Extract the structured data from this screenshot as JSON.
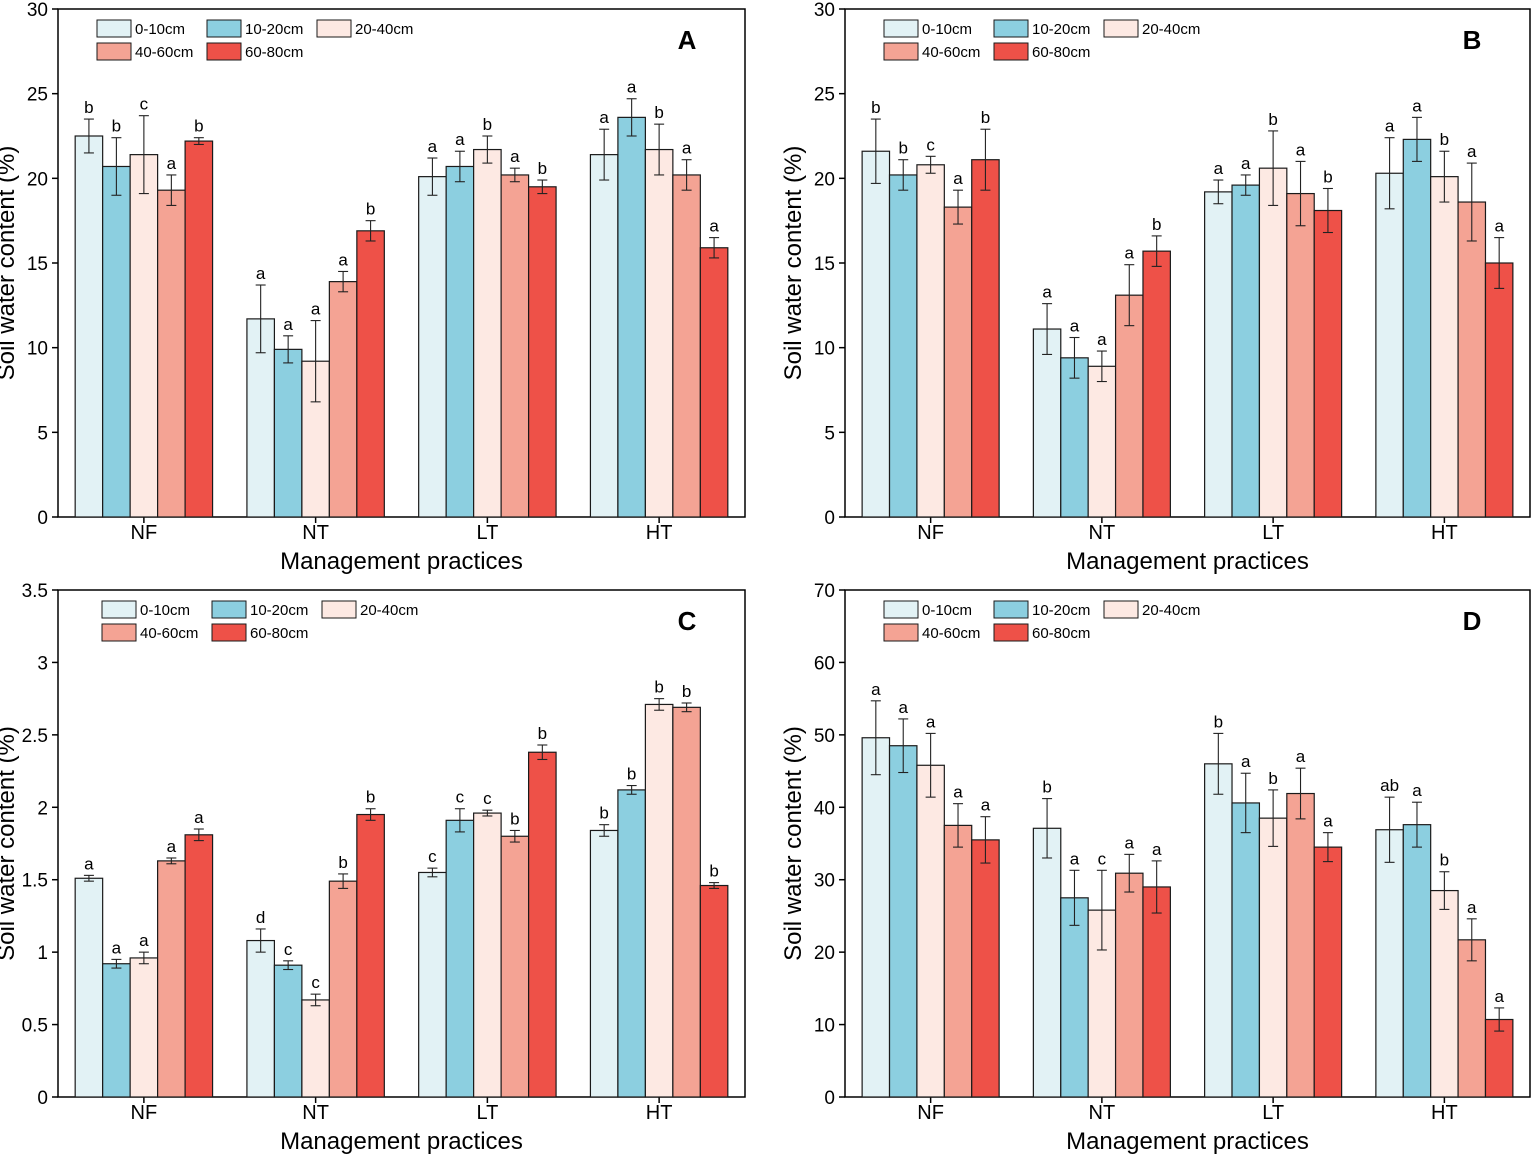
{
  "legend": [
    "0-10cm",
    "10-20cm",
    "20-40cm",
    "40-60cm",
    "60-80cm"
  ],
  "series_colors": [
    "#e2f2f5",
    "#8ccfe0",
    "#fde9e3",
    "#f4a394",
    "#ee5148"
  ],
  "chart_data": [
    {
      "type": "bar",
      "panel": "A",
      "categories": [
        "NF",
        "NT",
        "LT",
        "HT"
      ],
      "xlabel": "Management practices",
      "ylabel": "Soil water content (%)",
      "ylim": [
        0,
        30
      ],
      "yticks": [
        0,
        5,
        10,
        15,
        20,
        25,
        30
      ],
      "tick_labels": [
        "0",
        "5",
        "10",
        "15",
        "20",
        "25",
        "30"
      ],
      "series": [
        {
          "name": "0-10cm",
          "values": [
            22.5,
            11.7,
            20.1,
            21.4
          ],
          "errors": [
            1.0,
            2.0,
            1.1,
            1.5
          ],
          "letters": [
            "b",
            "a",
            "a",
            "a"
          ]
        },
        {
          "name": "10-20cm",
          "values": [
            20.7,
            9.9,
            20.7,
            23.6
          ],
          "errors": [
            1.7,
            0.8,
            0.9,
            1.1
          ],
          "letters": [
            "b",
            "a",
            "a",
            "a"
          ]
        },
        {
          "name": "20-40cm",
          "values": [
            21.4,
            9.2,
            21.7,
            21.7
          ],
          "errors": [
            2.3,
            2.4,
            0.8,
            1.5
          ],
          "letters": [
            "c",
            "a",
            "b",
            "b"
          ]
        },
        {
          "name": "40-60cm",
          "values": [
            19.3,
            13.9,
            20.2,
            20.2
          ],
          "errors": [
            0.9,
            0.6,
            0.4,
            0.9
          ],
          "letters": [
            "a",
            "a",
            "a",
            "a"
          ]
        },
        {
          "name": "60-80cm",
          "values": [
            22.2,
            16.9,
            19.5,
            15.9
          ],
          "errors": [
            0.2,
            0.6,
            0.4,
            0.6
          ],
          "letters": [
            "b",
            "b",
            "b",
            "a"
          ]
        }
      ]
    },
    {
      "type": "bar",
      "panel": "B",
      "categories": [
        "NF",
        "NT",
        "LT",
        "HT"
      ],
      "xlabel": "Management practices",
      "ylabel": "Soil water content (%)",
      "ylim": [
        0,
        30
      ],
      "yticks": [
        0,
        5,
        10,
        15,
        20,
        25,
        30
      ],
      "tick_labels": [
        "0",
        "5",
        "10",
        "15",
        "20",
        "25",
        "30"
      ],
      "series": [
        {
          "name": "0-10cm",
          "values": [
            21.6,
            11.1,
            19.2,
            20.3
          ],
          "errors": [
            1.9,
            1.5,
            0.7,
            2.1
          ],
          "letters": [
            "b",
            "a",
            "a",
            "a"
          ]
        },
        {
          "name": "10-20cm",
          "values": [
            20.2,
            9.4,
            19.6,
            22.3
          ],
          "errors": [
            0.9,
            1.2,
            0.6,
            1.3
          ],
          "letters": [
            "b",
            "a",
            "a",
            "a"
          ]
        },
        {
          "name": "20-40cm",
          "values": [
            20.8,
            8.9,
            20.6,
            20.1
          ],
          "errors": [
            0.5,
            0.9,
            2.2,
            1.5
          ],
          "letters": [
            "c",
            "a",
            "b",
            "b"
          ]
        },
        {
          "name": "40-60cm",
          "values": [
            18.3,
            13.1,
            19.1,
            18.6
          ],
          "errors": [
            1.0,
            1.8,
            1.9,
            2.3
          ],
          "letters": [
            "a",
            "a",
            "a",
            "a"
          ]
        },
        {
          "name": "60-80cm",
          "values": [
            21.1,
            15.7,
            18.1,
            15.0
          ],
          "errors": [
            1.8,
            0.9,
            1.3,
            1.5
          ],
          "letters": [
            "b",
            "b",
            "b",
            "a"
          ]
        }
      ]
    },
    {
      "type": "bar",
      "panel": "C",
      "categories": [
        "NF",
        "NT",
        "LT",
        "HT"
      ],
      "xlabel": "Management practices",
      "ylabel": "Soil water content (%)",
      "ylim": [
        0,
        3.5
      ],
      "yticks": [
        0,
        0.5,
        1,
        1.5,
        2,
        2.5,
        3,
        3.5
      ],
      "tick_labels": [
        "0",
        "0.5",
        "1",
        "1.5",
        "2",
        "2.5",
        "3",
        "3.5"
      ],
      "series": [
        {
          "name": "0-10cm",
          "values": [
            1.51,
            1.08,
            1.55,
            1.84
          ],
          "errors": [
            0.02,
            0.08,
            0.03,
            0.04
          ],
          "letters": [
            "a",
            "d",
            "c",
            "b"
          ]
        },
        {
          "name": "10-20cm",
          "values": [
            0.92,
            0.91,
            1.91,
            2.12
          ],
          "errors": [
            0.03,
            0.03,
            0.08,
            0.03
          ],
          "letters": [
            "a",
            "c",
            "c",
            "b"
          ]
        },
        {
          "name": "20-40cm",
          "values": [
            0.96,
            0.67,
            1.96,
            2.71
          ],
          "errors": [
            0.04,
            0.04,
            0.02,
            0.04
          ],
          "letters": [
            "a",
            "c",
            "c",
            "b"
          ]
        },
        {
          "name": "40-60cm",
          "values": [
            1.63,
            1.49,
            1.8,
            2.69
          ],
          "errors": [
            0.02,
            0.05,
            0.04,
            0.03
          ],
          "letters": [
            "a",
            "b",
            "b",
            "b"
          ]
        },
        {
          "name": "60-80cm",
          "values": [
            1.81,
            1.95,
            2.38,
            1.46
          ],
          "errors": [
            0.04,
            0.04,
            0.05,
            0.02
          ],
          "letters": [
            "a",
            "b",
            "b",
            "b"
          ]
        }
      ]
    },
    {
      "type": "bar",
      "panel": "D",
      "categories": [
        "NF",
        "NT",
        "LT",
        "HT"
      ],
      "xlabel": "Management practices",
      "ylabel": "Soil water content (%)",
      "ylim": [
        0,
        70
      ],
      "yticks": [
        0,
        10,
        20,
        30,
        40,
        50,
        60,
        70
      ],
      "tick_labels": [
        "0",
        "10",
        "20",
        "30",
        "40",
        "50",
        "60",
        "70"
      ],
      "series": [
        {
          "name": "0-10cm",
          "values": [
            49.6,
            37.1,
            46.0,
            36.9
          ],
          "errors": [
            5.1,
            4.1,
            4.2,
            4.5
          ],
          "letters": [
            "a",
            "b",
            "b",
            "ab"
          ]
        },
        {
          "name": "10-20cm",
          "values": [
            48.5,
            27.5,
            40.6,
            37.6
          ],
          "errors": [
            3.7,
            3.8,
            4.1,
            3.1
          ],
          "letters": [
            "a",
            "a",
            "a",
            "a"
          ]
        },
        {
          "name": "20-40cm",
          "values": [
            45.8,
            25.8,
            38.5,
            28.5
          ],
          "errors": [
            4.4,
            5.5,
            3.9,
            2.6
          ],
          "letters": [
            "a",
            "c",
            "b",
            "b"
          ]
        },
        {
          "name": "40-60cm",
          "values": [
            37.5,
            30.9,
            41.9,
            21.7
          ],
          "errors": [
            3.0,
            2.6,
            3.5,
            2.9
          ],
          "letters": [
            "a",
            "a",
            "a",
            "a"
          ]
        },
        {
          "name": "60-80cm",
          "values": [
            35.5,
            29.0,
            34.5,
            10.7
          ],
          "errors": [
            3.2,
            3.6,
            2.0,
            1.6
          ],
          "letters": [
            "a",
            "a",
            "a",
            "a"
          ]
        }
      ]
    }
  ]
}
